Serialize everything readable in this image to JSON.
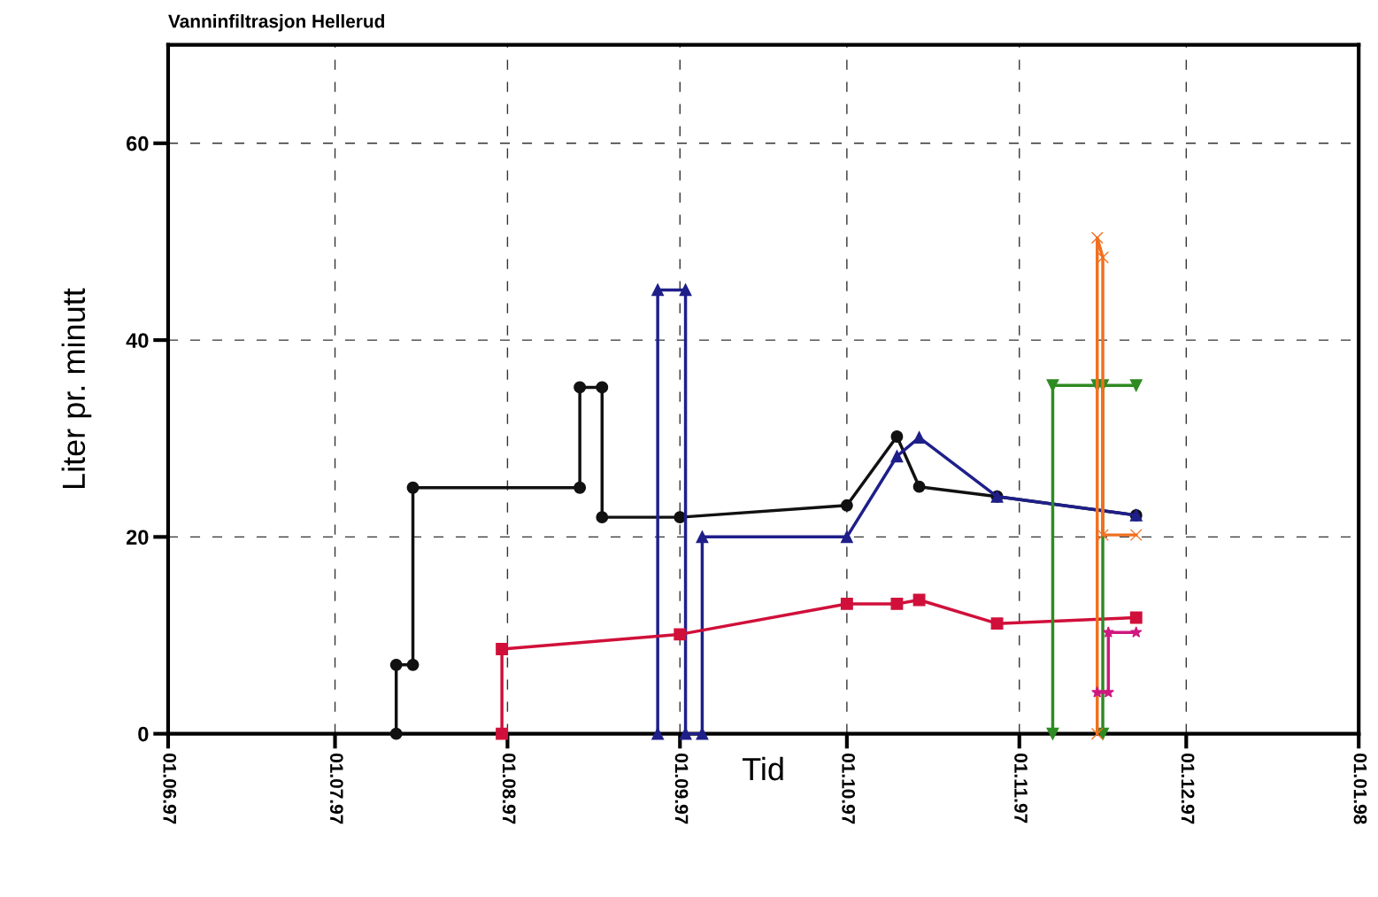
{
  "chart_data": {
    "type": "line",
    "title": "Vanninfiltrasjon Hellerud",
    "xlabel": "Tid",
    "ylabel": "Liter pr. minutt",
    "xlim": [
      "1997-06-01",
      "1998-01-01"
    ],
    "xticks": [
      {
        "value": "1997-06-01",
        "label": "01.06.97"
      },
      {
        "value": "1997-07-01",
        "label": "01.07.97"
      },
      {
        "value": "1997-08-01",
        "label": "01.08.97"
      },
      {
        "value": "1997-09-01",
        "label": "01.09.97"
      },
      {
        "value": "1997-10-01",
        "label": "01.10.97"
      },
      {
        "value": "1997-11-01",
        "label": "01.11.97"
      },
      {
        "value": "1997-12-01",
        "label": "01.12.97"
      },
      {
        "value": "1998-01-01",
        "label": "01.01.98"
      }
    ],
    "ylim": [
      0,
      70
    ],
    "yticks": [
      0,
      20,
      40,
      60
    ],
    "grid": true,
    "line_style": "solid",
    "series": [
      {
        "color": "#111111",
        "marker": "circle",
        "x": [
          "1997-07-12",
          "1997-07-12",
          "1997-07-15",
          "1997-07-15",
          "1997-08-14",
          "1997-08-14",
          "1997-08-18",
          "1997-08-18",
          "1997-09-01",
          "1997-10-01",
          "1997-10-10",
          "1997-10-14",
          "1997-10-28",
          "1997-11-22"
        ],
        "values": [
          0,
          7,
          7,
          25,
          25,
          35.2,
          35.2,
          22,
          22,
          23.2,
          30.2,
          25.1,
          24.1,
          22.2
        ]
      },
      {
        "color": "#1f1f8a",
        "marker": "triangle",
        "x": [
          "1997-08-28",
          "1997-08-28",
          "1997-09-02",
          "1997-09-02",
          "1997-09-05",
          "1997-09-05",
          "1997-10-01",
          "1997-10-10",
          "1997-10-14",
          "1997-10-28",
          "1997-11-22"
        ],
        "values": [
          0,
          45.1,
          45.1,
          0,
          0,
          20,
          20,
          28.2,
          30.1,
          24.1,
          22.2
        ]
      },
      {
        "color": "#d0103a",
        "marker": "square",
        "x": [
          "1997-07-31",
          "1997-07-31",
          "1997-09-01",
          "1997-10-01",
          "1997-10-10",
          "1997-10-14",
          "1997-10-28",
          "1997-11-22"
        ],
        "values": [
          0,
          8.6,
          10.1,
          13.2,
          13.2,
          13.6,
          11.2,
          11.8
        ]
      },
      {
        "color": "#2e8b22",
        "marker": "triangle_down",
        "x": [
          "1997-11-07",
          "1997-11-07",
          "1997-11-15"
        ],
        "values": [
          0,
          35.4,
          35.4
        ]
      },
      {
        "color": "#2e8b22",
        "marker": "triangle_down",
        "x": [
          "1997-11-16",
          "1997-11-16",
          "1997-11-22"
        ],
        "values": [
          0,
          35.4,
          35.4
        ]
      },
      {
        "color": "#f07020",
        "marker": "cross",
        "x": [
          "1997-11-15",
          "1997-11-15",
          "1997-11-16",
          "1997-11-16",
          "1997-11-22"
        ],
        "values": [
          0,
          50.4,
          48.4,
          20.2,
          20.2
        ]
      },
      {
        "color": "#d01880",
        "marker": "star",
        "x": [
          "1997-11-15",
          "1997-11-17",
          "1997-11-17",
          "1997-11-22"
        ],
        "values": [
          4.2,
          4.2,
          10.3,
          10.3
        ]
      }
    ]
  }
}
